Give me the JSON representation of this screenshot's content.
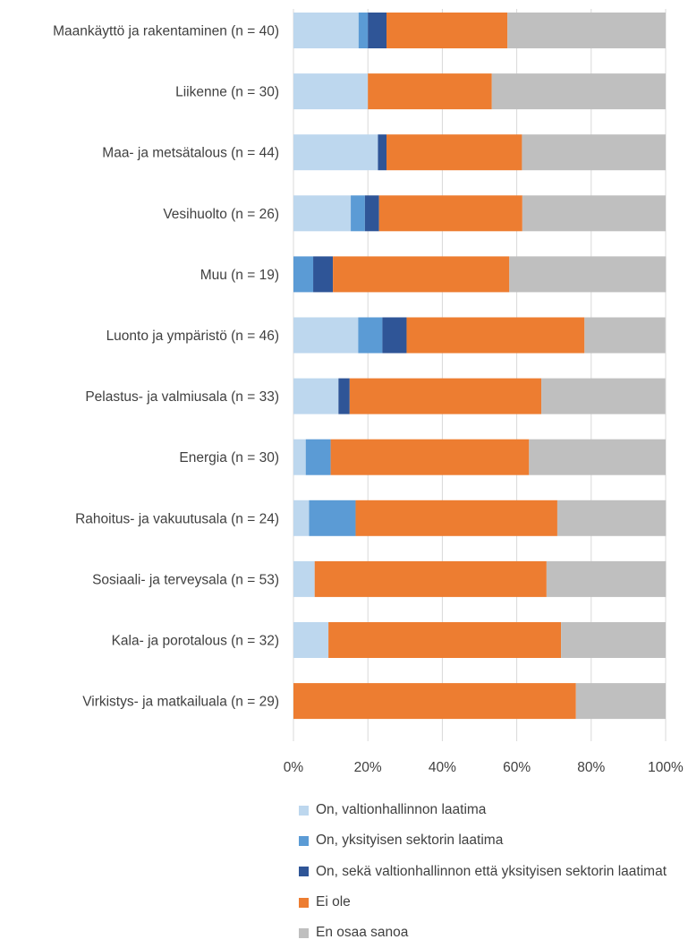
{
  "chart_data": {
    "type": "bar",
    "orientation": "horizontal",
    "stacked": true,
    "percent_stacked": true,
    "title": "",
    "xlabel": "",
    "ylabel": "",
    "xlim": [
      0,
      100
    ],
    "x_ticks": [
      "0%",
      "20%",
      "40%",
      "60%",
      "80%",
      "100%"
    ],
    "grid": "vertical",
    "legend_position": "bottom",
    "categories": [
      "Maankäyttö ja rakentaminen (n = 40)",
      "Liikenne (n = 30)",
      "Maa- ja metsätalous (n = 44)",
      "Vesihuolto (n = 26)",
      "Muu (n = 19)",
      "Luonto ja ympäristö (n = 46)",
      "Pelastus- ja valmiusala (n = 33)",
      "Energia (n = 30)",
      "Rahoitus- ja vakuutusala (n = 24)",
      "Sosiaali- ja terveysala (n = 53)",
      "Kala- ja porotalous (n = 32)",
      "Virkistys- ja matkailuala (n = 29)"
    ],
    "series": [
      {
        "name": "On, valtionhallinnon laatima",
        "color": "#bdd7ee",
        "values": [
          17.5,
          20.0,
          22.7,
          15.4,
          0.0,
          17.4,
          12.1,
          3.3,
          4.2,
          5.7,
          9.4,
          0.0
        ]
      },
      {
        "name": "On, yksityisen sektorin laatima",
        "color": "#5b9bd5",
        "values": [
          2.5,
          0.0,
          0.0,
          3.8,
          5.3,
          6.5,
          0.0,
          6.7,
          12.5,
          0.0,
          0.0,
          0.0
        ]
      },
      {
        "name": "On, sekä valtionhallinnon että yksityisen sektorin laatimat",
        "color": "#2f5597",
        "values": [
          5.0,
          0.0,
          2.3,
          3.8,
          5.3,
          6.5,
          3.0,
          0.0,
          0.0,
          0.0,
          0.0,
          0.0
        ]
      },
      {
        "name": "Ei ole",
        "color": "#ed7d31",
        "values": [
          32.5,
          33.3,
          36.4,
          38.5,
          47.4,
          47.8,
          51.5,
          53.3,
          54.2,
          62.3,
          62.5,
          75.9
        ]
      },
      {
        "name": "En osaa sanoa",
        "color": "#bfbfbf",
        "values": [
          42.5,
          46.7,
          38.6,
          38.5,
          42.1,
          21.7,
          33.3,
          36.7,
          29.2,
          32.1,
          28.1,
          24.1
        ]
      }
    ]
  }
}
